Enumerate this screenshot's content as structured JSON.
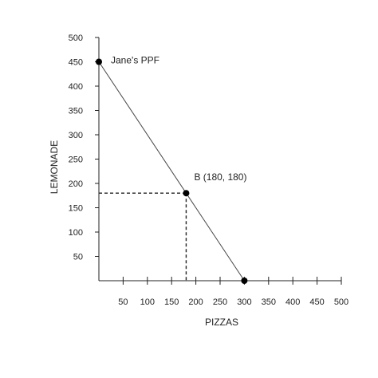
{
  "chart_data": {
    "type": "line",
    "xlabel": "PIZZAS",
    "ylabel": "LEMONADE",
    "xlim": [
      0,
      500
    ],
    "ylim": [
      0,
      500
    ],
    "x_ticks": [
      50,
      100,
      150,
      200,
      250,
      300,
      350,
      400,
      450,
      500
    ],
    "y_ticks": [
      50,
      100,
      150,
      200,
      250,
      300,
      350,
      400,
      450,
      500
    ],
    "grid": false,
    "series": [
      {
        "name": "Jane's PPF",
        "points": [
          {
            "x": 0,
            "y": 450
          },
          {
            "x": 300,
            "y": 0
          }
        ]
      }
    ],
    "markers": [
      {
        "x": 0,
        "y": 450
      },
      {
        "x": 180,
        "y": 180
      },
      {
        "x": 300,
        "y": 0
      }
    ],
    "annotations": [
      {
        "text": "Jane's PPF",
        "x": 0,
        "y": 450
      },
      {
        "text": "B (180, 180)",
        "x": 180,
        "y": 180
      }
    ],
    "reference_lines": [
      {
        "x": 180,
        "y": 180
      }
    ],
    "colors": {
      "axis": "#222222",
      "line": "#444444",
      "marker": "#000000"
    }
  }
}
